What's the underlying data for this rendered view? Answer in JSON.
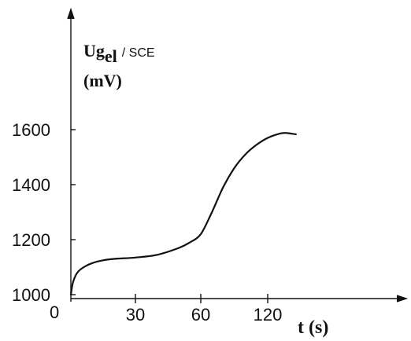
{
  "chart_data": {
    "type": "line",
    "title": "",
    "ylabel": {
      "main": "Ug",
      "sub": "el",
      "ref": "/ SCE",
      "unit": "(mV)"
    },
    "xlabel": "t  (s)",
    "origin_label": "0",
    "x_ticks": [
      "30",
      "60",
      "120"
    ],
    "y_ticks": [
      "1000",
      "1200",
      "1400",
      "1600"
    ],
    "ylim": [
      1000,
      1600
    ],
    "x_scale": "nonlinear (ticks 0, 30, 60, 120 equally spaced)",
    "grid": false,
    "series": [
      {
        "x": [
          0,
          1,
          3,
          6,
          10,
          15,
          20,
          30,
          40,
          50,
          55,
          60,
          70,
          80,
          90,
          100,
          110,
          120,
          130,
          135,
          140,
          145
        ],
        "y": [
          1000,
          1045,
          1080,
          1100,
          1115,
          1125,
          1130,
          1135,
          1145,
          1170,
          1190,
          1220,
          1300,
          1390,
          1460,
          1510,
          1545,
          1570,
          1585,
          1588,
          1586,
          1583
        ]
      }
    ]
  }
}
